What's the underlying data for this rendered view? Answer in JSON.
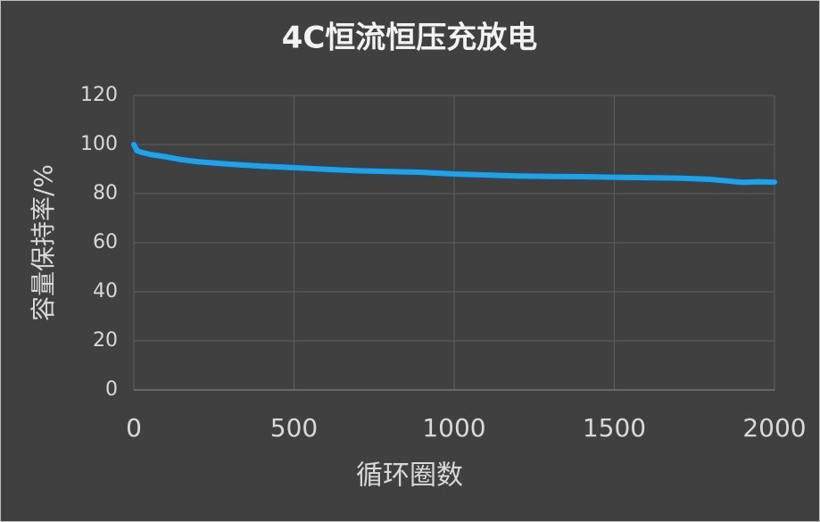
{
  "chart_data": {
    "type": "line",
    "title": "4C恒流恒压充放电",
    "xlabel": "循环圈数",
    "ylabel": "容量保持率/%",
    "x": [
      0,
      10,
      25,
      50,
      75,
      100,
      150,
      200,
      300,
      400,
      500,
      600,
      700,
      800,
      900,
      1000,
      1100,
      1200,
      1300,
      1400,
      1500,
      1600,
      1700,
      1800,
      1850,
      1900,
      1950,
      2000
    ],
    "series": [
      {
        "name": "容量保持率",
        "color": "#2a9fe0",
        "values": [
          100,
          97.5,
          96.8,
          96,
          95.5,
          95,
          93.8,
          93,
          92,
          91.2,
          90.6,
          89.9,
          89.3,
          89,
          88.7,
          88,
          87.6,
          87.2,
          87,
          86.9,
          86.7,
          86.5,
          86.3,
          85.8,
          85.2,
          84.6,
          84.8,
          84.7
        ]
      }
    ],
    "xlim": [
      0,
      2000
    ],
    "xticks": [
      0,
      500,
      1000,
      1500,
      2000
    ],
    "ylim": [
      0,
      120
    ],
    "yticks": [
      0,
      20,
      40,
      60,
      80,
      100,
      120
    ],
    "grid": true
  }
}
